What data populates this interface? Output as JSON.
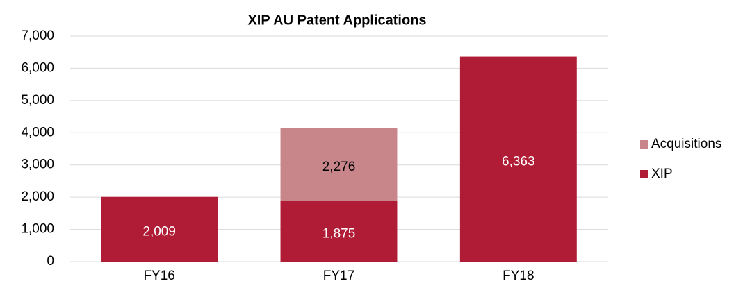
{
  "chart_data": {
    "type": "stacked_bar",
    "title": "XIP AU Patent Applications",
    "categories": [
      "FY16",
      "FY17",
      "FY18"
    ],
    "series": [
      {
        "name": "XIP",
        "color": "#b01c35",
        "values": [
          2009,
          1875,
          6363
        ],
        "value_labels": [
          "2,009",
          "1,875",
          "6,363"
        ]
      },
      {
        "name": "Acquisitions",
        "color": "#c8868b",
        "values": [
          null,
          2276,
          null
        ],
        "value_labels": [
          null,
          "2,276",
          null
        ]
      }
    ],
    "ylim": [
      0,
      7000
    ],
    "yticks": [
      0,
      {
        "value": 1000,
        "label": "1,000"
      },
      {
        "value": 2000,
        "label": "2,000"
      },
      {
        "value": 3000,
        "label": "3,000"
      },
      {
        "value": 4000,
        "label": "4,000"
      },
      {
        "value": 5000,
        "label": "5,000"
      },
      {
        "value": 6000,
        "label": "6,000"
      },
      {
        "value": 7000,
        "label": "7,000"
      }
    ],
    "grid": true,
    "legend": "right"
  }
}
